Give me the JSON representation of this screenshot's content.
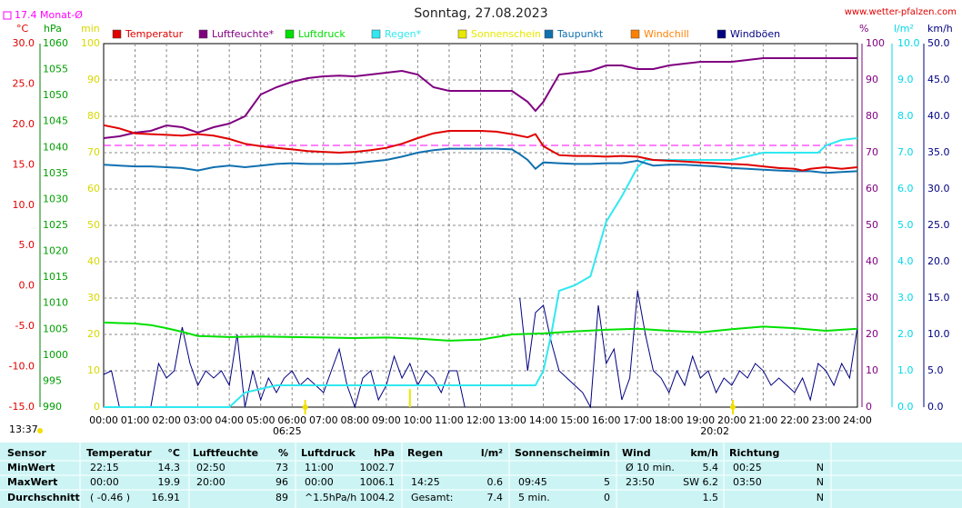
{
  "header": {
    "site": "www.wetter-pfalzen.com",
    "updated": "13:37"
  },
  "chart_data": {
    "type": "line",
    "title": "Sonntag, 27.08.2023",
    "monthly_mean": {
      "label": "17.4 Monat-Ø",
      "value": 17.4,
      "axis": 0,
      "color": "#ff00ff"
    },
    "sunrise": {
      "x": 6.4167,
      "label": "06:25"
    },
    "sunset": {
      "x": 20.0333,
      "label": "20:02"
    },
    "xlim": [
      0,
      24
    ],
    "xticks": [
      {
        "value": 0,
        "label": "00:00"
      },
      {
        "value": 1,
        "label": "01:00"
      },
      {
        "value": 2,
        "label": "02:00"
      },
      {
        "value": 3,
        "label": "03:00"
      },
      {
        "value": 4,
        "label": "04:00"
      },
      {
        "value": 5,
        "label": "05:00"
      },
      {
        "value": 6,
        "label": "06:00"
      },
      {
        "value": 7,
        "label": "07:00"
      },
      {
        "value": 8,
        "label": "08:00"
      },
      {
        "value": 9,
        "label": "09:00"
      },
      {
        "value": 10,
        "label": "10:00"
      },
      {
        "value": 11,
        "label": "11:00"
      },
      {
        "value": 12,
        "label": "12:00"
      },
      {
        "value": 13,
        "label": "13:00"
      },
      {
        "value": 14,
        "label": "14:00"
      },
      {
        "value": 15,
        "label": "15:00"
      },
      {
        "value": 16,
        "label": "16:00"
      },
      {
        "value": 17,
        "label": "17:00"
      },
      {
        "value": 18,
        "label": "18:00"
      },
      {
        "value": 19,
        "label": "19:00"
      },
      {
        "value": 20,
        "label": "20:00"
      },
      {
        "value": 21,
        "label": "21:00"
      },
      {
        "value": 22,
        "label": "22:00"
      },
      {
        "value": 23,
        "label": "23:00"
      },
      {
        "value": 24,
        "label": "24:00"
      }
    ],
    "grid": true,
    "axes": [
      {
        "name": "°C",
        "color": "#e00000",
        "lim": [
          -15,
          30
        ],
        "ticks": [
          {
            "value": -15,
            "label": "-15.0"
          },
          {
            "value": -10,
            "label": "-10.0"
          },
          {
            "value": -5,
            "label": "-5.0"
          },
          {
            "value": 0,
            "label": "0.0"
          },
          {
            "value": 5,
            "label": "5.0"
          },
          {
            "value": 10,
            "label": "10.0"
          },
          {
            "value": 15,
            "label": "15.0"
          },
          {
            "value": 20,
            "label": "20.0"
          },
          {
            "value": 25,
            "label": "25.0"
          },
          {
            "value": 30,
            "label": "30.0"
          }
        ]
      },
      {
        "name": "hPa",
        "color": "#00a000",
        "lim": [
          990,
          1060
        ],
        "ticks": [
          990,
          995,
          1000,
          1005,
          1010,
          1015,
          1020,
          1025,
          1030,
          1035,
          1040,
          1045,
          1050,
          1055,
          1060
        ]
      },
      {
        "name": "min",
        "color": "#d8d800",
        "lim": [
          0,
          100
        ],
        "ticks": [
          0,
          10,
          20,
          30,
          40,
          50,
          60,
          70,
          80,
          90,
          100
        ]
      },
      {
        "name": "%",
        "color": "#800080",
        "lim": [
          0,
          100
        ],
        "ticks": [
          0,
          10,
          20,
          30,
          40,
          50,
          60,
          70,
          80,
          90,
          100
        ]
      },
      {
        "name": "l/m²",
        "color": "#00d8e8",
        "lim": [
          0,
          10
        ],
        "ticks": [
          {
            "value": 0,
            "label": "0.0"
          },
          {
            "value": 1,
            "label": "1.0"
          },
          {
            "value": 2,
            "label": "2.0"
          },
          {
            "value": 3,
            "label": "3.0"
          },
          {
            "value": 4,
            "label": "4.0"
          },
          {
            "value": 5,
            "label": "5.0"
          },
          {
            "value": 6,
            "label": "6.0"
          },
          {
            "value": 7,
            "label": "7.0"
          },
          {
            "value": 8,
            "label": "8.0"
          },
          {
            "value": 9,
            "label": "9.0"
          },
          {
            "value": 10,
            "label": "10.0"
          }
        ]
      },
      {
        "name": "km/h",
        "color": "#000080",
        "lim": [
          0,
          50
        ],
        "ticks": [
          {
            "value": 0,
            "label": "0.0"
          },
          {
            "value": 5,
            "label": "5.0"
          },
          {
            "value": 10,
            "label": "10.0"
          },
          {
            "value": 15,
            "label": "15.0"
          },
          {
            "value": 20,
            "label": "20.0"
          },
          {
            "value": 25,
            "label": "25.0"
          },
          {
            "value": 30,
            "label": "30.0"
          },
          {
            "value": 35,
            "label": "35.0"
          },
          {
            "value": 40,
            "label": "40.0"
          },
          {
            "value": 45,
            "label": "45.0"
          },
          {
            "value": 50,
            "label": "50.0"
          }
        ]
      }
    ],
    "series": [
      {
        "name": "Temperatur",
        "color": "#e00000",
        "axis": 0,
        "x": [
          0,
          0.5,
          1,
          1.5,
          2,
          2.5,
          3,
          3.5,
          4,
          4.5,
          5,
          5.5,
          6,
          6.5,
          7,
          7.5,
          8,
          8.5,
          9,
          9.5,
          10,
          10.5,
          11,
          11.5,
          12,
          12.5,
          13,
          13.5,
          13.75,
          14,
          14.5,
          15,
          15.5,
          16,
          16.5,
          17,
          17.5,
          18,
          18.5,
          19,
          19.5,
          20,
          20.5,
          21,
          21.5,
          22,
          22.25,
          22.5,
          23,
          23.5,
          24
        ],
        "values": [
          19.9,
          19.5,
          18.9,
          18.8,
          18.7,
          18.6,
          18.8,
          18.6,
          18.2,
          17.6,
          17.3,
          17.1,
          16.9,
          16.7,
          16.6,
          16.5,
          16.6,
          16.8,
          17.1,
          17.6,
          18.3,
          18.9,
          19.2,
          19.2,
          19.2,
          19.1,
          18.8,
          18.4,
          18.8,
          17.3,
          16.2,
          16.1,
          16.1,
          16.0,
          16.1,
          16.0,
          15.6,
          15.5,
          15.4,
          15.3,
          15.2,
          15.1,
          15.0,
          14.8,
          14.6,
          14.5,
          14.3,
          14.5,
          14.7,
          14.5,
          14.7
        ]
      },
      {
        "name": "Luftfeuchte*",
        "color": "#800080",
        "axis": 3,
        "x": [
          0,
          0.5,
          1,
          1.5,
          2,
          2.5,
          3,
          3.5,
          4,
          4.5,
          5,
          5.5,
          6,
          6.5,
          7,
          7.5,
          8,
          8.5,
          9,
          9.5,
          10,
          10.5,
          11,
          11.5,
          12,
          12.5,
          13,
          13.5,
          13.75,
          14,
          14.5,
          15,
          15.5,
          16,
          16.5,
          17,
          17.5,
          18,
          18.5,
          19,
          19.5,
          20,
          20.5,
          21,
          22,
          23,
          24
        ],
        "values": [
          74,
          74.5,
          75.5,
          76,
          77.5,
          77,
          75.5,
          77,
          78,
          80,
          86,
          88,
          89.5,
          90.5,
          91,
          91.2,
          91,
          91.5,
          92,
          92.5,
          91.5,
          88,
          87,
          87,
          87,
          87,
          87,
          84,
          81.5,
          84,
          91.5,
          92,
          92.5,
          94,
          94,
          93,
          93,
          94,
          94.5,
          95,
          95,
          95,
          95.5,
          96,
          96,
          96,
          96
        ]
      },
      {
        "name": "Luftdruck",
        "color": "#00e000",
        "axis": 1,
        "x": [
          0,
          1,
          1.5,
          2,
          2.5,
          3,
          3.5,
          4,
          5,
          6,
          7,
          8,
          9,
          10,
          11,
          12,
          13,
          14,
          15,
          16,
          17,
          18,
          19,
          20,
          21,
          22,
          23,
          24
        ],
        "values": [
          1006.3,
          1006.1,
          1005.8,
          1005.2,
          1004.5,
          1003.7,
          1003.6,
          1003.5,
          1003.6,
          1003.5,
          1003.4,
          1003.3,
          1003.4,
          1003.2,
          1002.8,
          1003.0,
          1004.0,
          1004.2,
          1004.6,
          1004.9,
          1005.1,
          1004.7,
          1004.4,
          1005.0,
          1005.5,
          1005.2,
          1004.7,
          1005.1
        ]
      },
      {
        "name": "Regen*",
        "color": "#30e8f0",
        "axis": 4,
        "x": [
          0,
          4,
          4.25,
          4.5,
          5,
          5.5,
          13.75,
          14,
          14.25,
          14.5,
          15,
          15.5,
          16,
          16.5,
          17,
          17.25,
          20,
          20.5,
          21,
          22.75,
          23,
          23.5,
          24
        ],
        "values": [
          0,
          0,
          0.2,
          0.4,
          0.5,
          0.6,
          0.6,
          1.0,
          2.0,
          3.2,
          3.35,
          3.6,
          5.1,
          5.8,
          6.6,
          6.8,
          6.8,
          6.9,
          7.0,
          7.0,
          7.2,
          7.35,
          7.4
        ]
      },
      {
        "name": "Sonnenschein",
        "color": "#e8e800",
        "axis": 2,
        "style": "bar",
        "x": [
          9.75
        ],
        "values": [
          5
        ]
      },
      {
        "name": "Taupunkt",
        "color": "#1070b0",
        "axis": 0,
        "x": [
          0,
          0.5,
          1,
          1.5,
          2,
          2.5,
          3,
          3.5,
          4,
          4.5,
          5,
          5.5,
          6,
          6.5,
          7,
          7.5,
          8,
          8.5,
          9,
          9.5,
          10,
          10.5,
          11,
          11.5,
          12,
          12.5,
          13,
          13.25,
          13.5,
          13.75,
          14,
          14.5,
          15,
          15.5,
          16,
          16.5,
          17,
          17.5,
          18,
          18.5,
          19,
          19.5,
          20,
          20.5,
          21,
          21.5,
          22,
          22.5,
          23,
          23.5,
          24
        ],
        "values": [
          15.0,
          14.9,
          14.8,
          14.8,
          14.7,
          14.6,
          14.3,
          14.7,
          14.9,
          14.7,
          14.9,
          15.1,
          15.2,
          15.1,
          15.1,
          15.1,
          15.2,
          15.4,
          15.6,
          16.0,
          16.5,
          16.8,
          17.0,
          17.0,
          17.0,
          17.0,
          16.9,
          16.3,
          15.6,
          14.5,
          15.3,
          15.2,
          15.1,
          15.1,
          15.2,
          15.2,
          15.5,
          14.9,
          15.0,
          15.0,
          14.9,
          14.8,
          14.6,
          14.5,
          14.4,
          14.3,
          14.2,
          14.2,
          14.0,
          14.1,
          14.2
        ]
      },
      {
        "name": "Windchill",
        "color": "#ff8000",
        "axis": 0,
        "x": [],
        "values": []
      },
      {
        "name": "Windböen",
        "color": "#000080",
        "axis": 5,
        "x": [
          0,
          0.25,
          0.5,
          1,
          1.25,
          1.5,
          1.75,
          2,
          2.25,
          2.5,
          2.75,
          3,
          3.25,
          3.5,
          3.75,
          4,
          4.25,
          4.5,
          4.75,
          5,
          5.25,
          5.5,
          5.75,
          6,
          6.25,
          6.5,
          6.75,
          7,
          7.25,
          7.5,
          7.75,
          8,
          8.25,
          8.5,
          8.75,
          9,
          9.25,
          9.5,
          9.75,
          10,
          10.25,
          10.5,
          10.75,
          11,
          11.25,
          11.5,
          12,
          13.25,
          13.5,
          13.75,
          14,
          14.25,
          14.5,
          14.75,
          15,
          15.25,
          15.5,
          15.75,
          16,
          16.25,
          16.5,
          16.75,
          17,
          17.25,
          17.5,
          17.75,
          18,
          18.25,
          18.5,
          18.75,
          19,
          19.25,
          19.5,
          19.75,
          20,
          20.25,
          20.5,
          20.75,
          21,
          21.25,
          21.5,
          21.75,
          22,
          22.25,
          22.5,
          22.75,
          23,
          23.25,
          23.5,
          23.75,
          24
        ],
        "values": [
          4.5,
          5,
          0,
          0,
          0,
          0,
          6,
          4,
          5,
          11,
          6,
          3,
          5,
          4,
          5,
          3,
          10,
          0,
          5,
          1,
          4,
          2,
          4,
          5,
          3,
          4,
          3,
          2,
          5,
          8,
          3,
          0,
          4,
          5,
          1,
          3,
          7,
          4,
          6,
          3,
          5,
          4,
          2,
          5,
          5,
          0,
          null,
          15,
          5,
          13,
          14,
          9,
          5,
          4,
          3,
          2,
          0,
          14,
          6,
          8,
          1,
          4,
          16,
          10,
          5,
          4,
          2,
          5,
          3,
          7,
          4,
          5,
          2,
          4,
          3,
          5,
          4,
          6,
          5,
          3,
          4,
          3,
          2,
          4,
          1,
          6,
          5,
          3,
          6,
          4,
          11
        ]
      }
    ]
  },
  "table": {
    "headers": [
      [
        "Sensor"
      ],
      [
        "Temperatur",
        "°C"
      ],
      [
        "Luftfeuchte",
        "%"
      ],
      [
        "Luftdruck",
        "hPa"
      ],
      [
        "Regen",
        "l/m²"
      ],
      [
        "Sonnenschein",
        "min"
      ],
      [
        "Wind",
        "km/h"
      ],
      [
        "Richtung"
      ]
    ],
    "rows": [
      {
        "label": "MinWert",
        "cells": [
          [
            "22:15",
            "14.3"
          ],
          [
            "02:50",
            "73"
          ],
          [
            "11:00",
            "1002.7"
          ],
          [
            null,
            null
          ],
          [
            null,
            null
          ],
          [
            "Ø 10 min.",
            "5.4"
          ],
          [
            "00:25",
            "N"
          ]
        ]
      },
      {
        "label": "MaxWert",
        "cells": [
          [
            "00:00",
            "19.9"
          ],
          [
            "20:00",
            "96"
          ],
          [
            "00:00",
            "1006.1"
          ],
          [
            "14:25",
            "0.6"
          ],
          [
            "09:45",
            "5"
          ],
          [
            "23:50",
            "SW 6.2"
          ],
          [
            "03:50",
            "N"
          ]
        ]
      },
      {
        "label": "Durchschnitt",
        "cells": [
          [
            "( -0.46 )",
            "16.91"
          ],
          [
            null,
            "89"
          ],
          [
            "^1.5hPa/h",
            "1004.2"
          ],
          [
            "Gesamt:",
            "7.4"
          ],
          [
            "5 min.",
            "0"
          ],
          [
            null,
            "1.5"
          ],
          [
            null,
            "N"
          ]
        ]
      }
    ]
  }
}
